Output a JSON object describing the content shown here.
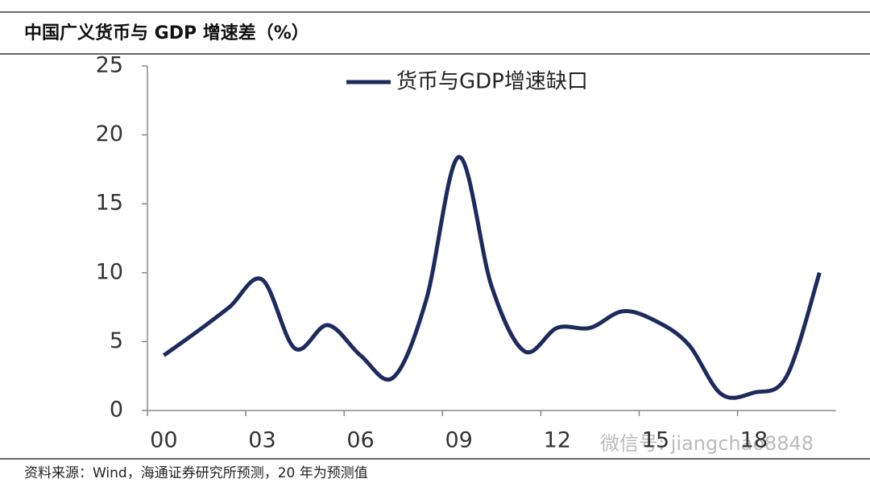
{
  "chart_data": {
    "type": "line",
    "title": "中国广义货币与 GDP 增速差（%）",
    "source": "资料来源：Wind，海通证券研究所预测，20 年为预测值",
    "watermark": "微信号: jiangchao8848",
    "categories": [
      "00",
      null,
      null,
      "03",
      null,
      null,
      "06",
      null,
      null,
      "09",
      null,
      null,
      "12",
      null,
      null,
      "15",
      null,
      null,
      "18",
      null,
      null
    ],
    "series": [
      {
        "name": "货币与GDP增速缺口",
        "color": "#1c2a5e",
        "values": [
          4.0,
          5.7,
          7.5,
          9.5,
          4.5,
          6.2,
          4.0,
          2.4,
          8.0,
          18.4,
          9.0,
          4.3,
          6.0,
          6.0,
          7.2,
          6.5,
          4.8,
          1.2,
          1.3,
          2.5,
          10.0
        ]
      }
    ],
    "ylim": [
      0,
      25
    ],
    "yticks": [
      0,
      5,
      10,
      15,
      20,
      25
    ],
    "grid": false,
    "legend": "top"
  }
}
